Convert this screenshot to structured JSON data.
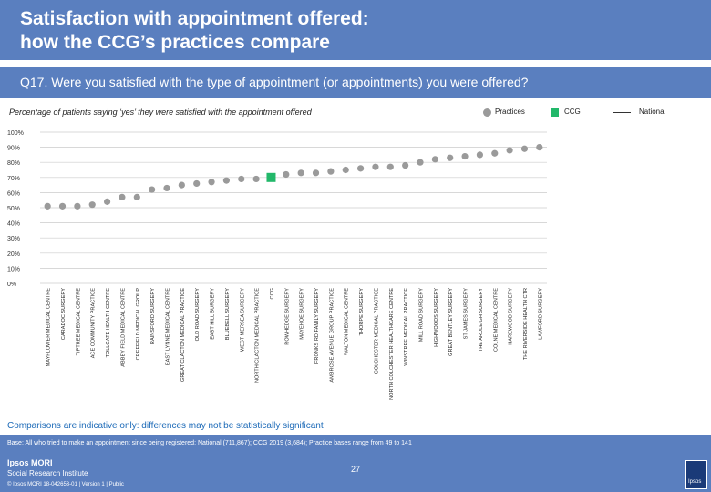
{
  "header": {
    "title_line1": "Satisfaction with appointment offered:",
    "title_line2": "how the CCG’s practices compare",
    "question": "Q17. Were you satisfied with the type of appointment (or appointments) you were offered?"
  },
  "legend": {
    "practices": "Practices",
    "ccg": "CCG",
    "national": "National"
  },
  "colors": {
    "band": "#5a7fbf",
    "practice_marker": "#9a9a9a",
    "ccg_marker": "#22b86a",
    "grid": "#cccccc",
    "note_text": "#1e6bb8"
  },
  "footer": {
    "note": "Comparisons are indicative only: differences may not be statistically significant",
    "base": "Base: All who tried to make an appointment since being registered: National (711,867); CCG 2019 (3,684); Practice bases range from 49 to 141",
    "logo_line1": "Ipsos MORI",
    "logo_line2": "Social Research Institute",
    "copyright": "© Ipsos MORI    18-042653-01 | Version 1 | Public",
    "page_number": "27",
    "logo_text": "Ipsos"
  },
  "chart_data": {
    "type": "scatter",
    "title": "Percentage of patients saying ‘yes’ they were satisfied with the appointment offered",
    "ylim": [
      0,
      100
    ],
    "y_ticks": [
      "0%",
      "10%",
      "20%",
      "30%",
      "40%",
      "50%",
      "60%",
      "70%",
      "80%",
      "90%",
      "100%"
    ],
    "grid": true,
    "legend_position": "top-right",
    "points": [
      {
        "label": "MAYFLOWER MEDICAL CENTRE",
        "value": 51,
        "kind": "practice"
      },
      {
        "label": "CARADOC SURGERY",
        "value": 51,
        "kind": "practice"
      },
      {
        "label": "TIPTREE MEDICAL CENTRE",
        "value": 51,
        "kind": "practice"
      },
      {
        "label": "ACE COMMUNITY PRACTICE",
        "value": 52,
        "kind": "practice"
      },
      {
        "label": "TOLLGATE HEALTH CENTRE",
        "value": 54,
        "kind": "practice"
      },
      {
        "label": "ABBEY FIELD MEDICAL CENTRE",
        "value": 57,
        "kind": "practice"
      },
      {
        "label": "CREFFIELD MEDICAL GROUP",
        "value": 57,
        "kind": "practice"
      },
      {
        "label": "RAINSFORD SURGERY",
        "value": 62,
        "kind": "practice"
      },
      {
        "label": "EAST LYNNE MEDICAL CENTRE",
        "value": 63,
        "kind": "practice"
      },
      {
        "label": "GREAT CLACTON MEDICAL PRACTICE",
        "value": 65,
        "kind": "practice"
      },
      {
        "label": "OLD ROAD SURGERY",
        "value": 66,
        "kind": "practice"
      },
      {
        "label": "EAST HILL SURGERY",
        "value": 67,
        "kind": "practice"
      },
      {
        "label": "BLUEBELL SURGERY",
        "value": 68,
        "kind": "practice"
      },
      {
        "label": "WEST MERSEA SURGERY",
        "value": 69,
        "kind": "practice"
      },
      {
        "label": "NORTH CLACTON MEDICAL PRACTICE",
        "value": 69,
        "kind": "practice"
      },
      {
        "label": "CCG",
        "value": 70,
        "kind": "ccg"
      },
      {
        "label": "ROWHEDGE SURGERY",
        "value": 72,
        "kind": "practice"
      },
      {
        "label": "MAYEHOE SURGERY",
        "value": 73,
        "kind": "practice"
      },
      {
        "label": "FRONKS RD FAMILY SURGERY",
        "value": 73,
        "kind": "practice"
      },
      {
        "label": "AMBROSE AVENUE GROUP PRACTICE",
        "value": 74,
        "kind": "practice"
      },
      {
        "label": "WALTON MEDICAL CENTRE",
        "value": 75,
        "kind": "practice"
      },
      {
        "label": "THORPE SURGERY",
        "value": 76,
        "kind": "practice"
      },
      {
        "label": "COLCHESTER MEDICAL PRACTICE",
        "value": 77,
        "kind": "practice"
      },
      {
        "label": "NORTH COLCHESTER HEALTHCARE CENTRE",
        "value": 77,
        "kind": "practice"
      },
      {
        "label": "WINSTREE MEDICAL PRACTICE",
        "value": 78,
        "kind": "practice"
      },
      {
        "label": "MILL ROAD SURGERY",
        "value": 80,
        "kind": "practice"
      },
      {
        "label": "HIGHWOODS SURGERY",
        "value": 82,
        "kind": "practice"
      },
      {
        "label": "GREAT BENTLEY SURGERY",
        "value": 83,
        "kind": "practice"
      },
      {
        "label": "ST JAMES SURGERY",
        "value": 84,
        "kind": "practice"
      },
      {
        "label": "THE ARDLEIGH SURGERY",
        "value": 85,
        "kind": "practice"
      },
      {
        "label": "COLNE MEDICAL CENTRE",
        "value": 86,
        "kind": "practice"
      },
      {
        "label": "HAREWOOD SURGERY",
        "value": 88,
        "kind": "practice"
      },
      {
        "label": "THE RIVERSIDE HEALTH CTR",
        "value": 89,
        "kind": "practice"
      },
      {
        "label": "LAWFORD SURGERY",
        "value": 90,
        "kind": "practice"
      }
    ]
  }
}
